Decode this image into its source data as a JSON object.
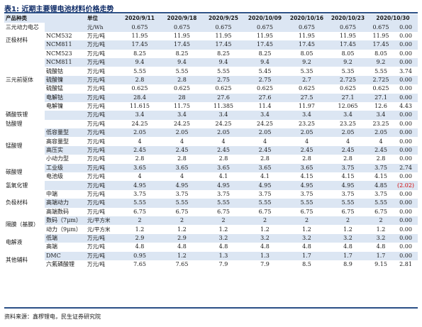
{
  "title": "表1: 近期主要锂电池材料价格走势",
  "source": "资料来源：鑫椤锂电，民生证券研究院",
  "headers": [
    "产品种类",
    "",
    "单位",
    "2020/9/11",
    "2020/9/18",
    "2020/9/25",
    "2020/10/09",
    "2020/10/16",
    "2020/10/23",
    "2020/10/30",
    "环比(%)"
  ],
  "groups": [
    {
      "category": "三元动力电芯",
      "rows": [
        {
          "sub": "",
          "unit": "元/Wh",
          "values": [
            "0.675",
            "0.675",
            "0.675",
            "0.675",
            "0.675",
            "0.675",
            "0.675"
          ],
          "change": "0.00"
        }
      ]
    },
    {
      "category": "正极材料",
      "rows": [
        {
          "sub": "NCM532",
          "unit": "万元/吨",
          "values": [
            "11.95",
            "11.95",
            "11.95",
            "11.95",
            "11.95",
            "11.95",
            "11.95"
          ],
          "change": "0.00"
        },
        {
          "sub": "NCM811",
          "unit": "万元/吨",
          "values": [
            "17.45",
            "17.45",
            "17.45",
            "17.45",
            "17.45",
            "17.45",
            "17.45"
          ],
          "change": "0.00"
        }
      ]
    },
    {
      "category": "三元前驱体",
      "rows": [
        {
          "sub": "NCM523",
          "unit": "万元/吨",
          "values": [
            "8.25",
            "8.25",
            "8.25",
            "8.25",
            "8.05",
            "8.05",
            "8.05"
          ],
          "change": "0.00"
        },
        {
          "sub": "NCM811",
          "unit": "万元/吨",
          "values": [
            "9.4",
            "9.4",
            "9.4",
            "9.4",
            "9.2",
            "9.2",
            "9.2"
          ],
          "change": "0.00"
        },
        {
          "sub": "硫酸钴",
          "unit": "万元/吨",
          "values": [
            "5.55",
            "5.55",
            "5.55",
            "5.45",
            "5.35",
            "5.35",
            "5.55"
          ],
          "change": "3.74"
        },
        {
          "sub": "硫酸镍",
          "unit": "万元/吨",
          "values": [
            "2.8",
            "2.8",
            "2.75",
            "2.75",
            "2.7",
            "2.725",
            "2.725"
          ],
          "change": "0.00"
        },
        {
          "sub": "硫酸锰",
          "unit": "万元/吨",
          "values": [
            "0.625",
            "0.625",
            "0.625",
            "0.625",
            "0.625",
            "0.625",
            "0.625"
          ],
          "change": "0.00"
        },
        {
          "sub": "电解钴",
          "unit": "万元/吨",
          "values": [
            "28.4",
            "28",
            "27.6",
            "27.6",
            "27.5",
            "27.1",
            "27.1"
          ],
          "change": "0.00"
        },
        {
          "sub": "电解镍",
          "unit": "万元/吨",
          "values": [
            "11.615",
            "11.75",
            "11.385",
            "11.4",
            "11.97",
            "12.065",
            "12.6"
          ],
          "change": "4.43"
        }
      ]
    },
    {
      "category": "磷酸铁锂",
      "rows": [
        {
          "sub": "",
          "unit": "万元/吨",
          "values": [
            "3.4",
            "3.4",
            "3.4",
            "3.4",
            "3.4",
            "3.4",
            "3.4"
          ],
          "change": "0.00"
        }
      ]
    },
    {
      "category": "钴酸锂",
      "rows": [
        {
          "sub": "",
          "unit": "万元/吨",
          "values": [
            "24.25",
            "24.25",
            "24.25",
            "24.25",
            "23.25",
            "23.25",
            "23.25"
          ],
          "change": "0.00"
        }
      ]
    },
    {
      "category": "锰酸锂",
      "rows": [
        {
          "sub": "低容量型",
          "unit": "万元/吨",
          "values": [
            "2.05",
            "2.05",
            "2.05",
            "2.05",
            "2.05",
            "2.05",
            "2.05"
          ],
          "change": "0.00"
        },
        {
          "sub": "高容量型",
          "unit": "万元/吨",
          "values": [
            "4",
            "4",
            "4",
            "4",
            "4",
            "4",
            "4"
          ],
          "change": "0.00"
        },
        {
          "sub": "高压实",
          "unit": "万元/吨",
          "values": [
            "2.45",
            "2.45",
            "2.45",
            "2.45",
            "2.45",
            "2.45",
            "2.45"
          ],
          "change": "0.00"
        },
        {
          "sub": "小动力型",
          "unit": "万元/吨",
          "values": [
            "2.8",
            "2.8",
            "2.8",
            "2.8",
            "2.8",
            "2.8",
            "2.8"
          ],
          "change": "0.00"
        }
      ]
    },
    {
      "category": "碳酸锂",
      "rows": [
        {
          "sub": "工业级",
          "unit": "万元/吨",
          "values": [
            "3.65",
            "3.65",
            "3.65",
            "3.65",
            "3.65",
            "3.75",
            "3.75"
          ],
          "change": "2.74"
        },
        {
          "sub": "电池级",
          "unit": "万元/吨",
          "values": [
            "4",
            "4",
            "4.1",
            "4.1",
            "4.15",
            "4.15",
            "4.15"
          ],
          "change": "0.00"
        }
      ]
    },
    {
      "category": "氢氧化锂",
      "rows": [
        {
          "sub": "",
          "unit": "万元/吨",
          "values": [
            "4.95",
            "4.95",
            "4.95",
            "4.95",
            "4.95",
            "4.95",
            "4.85"
          ],
          "change": "(2.02)",
          "change_negative": true
        }
      ]
    },
    {
      "category": "负极材料",
      "rows": [
        {
          "sub": "中端",
          "unit": "万元/吨",
          "values": [
            "3.75",
            "3.75",
            "3.75",
            "3.75",
            "3.75",
            "3.75",
            "3.75"
          ],
          "change": "0.00"
        },
        {
          "sub": "高端动力",
          "unit": "万元/吨",
          "values": [
            "5.55",
            "5.55",
            "5.55",
            "5.55",
            "5.55",
            "5.55",
            "5.55"
          ],
          "change": "0.00"
        },
        {
          "sub": "高端数码",
          "unit": "万元/吨",
          "values": [
            "6.75",
            "6.75",
            "6.75",
            "6.75",
            "6.75",
            "6.75",
            "6.75"
          ],
          "change": "0.00"
        }
      ]
    },
    {
      "category": "隔膜（基膜）",
      "rows": [
        {
          "sub": "数码（7μm）",
          "unit": "元/平方米",
          "values": [
            "2",
            "2",
            "2",
            "2",
            "2",
            "2",
            "2"
          ],
          "change": "0.00"
        },
        {
          "sub": "动力（9μm）",
          "unit": "元/平方米",
          "values": [
            "1.2",
            "1.2",
            "1.2",
            "1.2",
            "1.2",
            "1.2",
            "1.2"
          ],
          "change": "0.00"
        }
      ]
    },
    {
      "category": "电解液",
      "rows": [
        {
          "sub": "低端",
          "unit": "万元/吨",
          "values": [
            "2.9",
            "2.9",
            "3.2",
            "3.2",
            "3.2",
            "3.2",
            "3.2"
          ],
          "change": "0.00"
        },
        {
          "sub": "高端",
          "unit": "万元/吨",
          "values": [
            "4.8",
            "4.8",
            "4.8",
            "4.8",
            "4.8",
            "4.8",
            "4.8"
          ],
          "change": "0.00"
        }
      ]
    },
    {
      "category": "其他辅料",
      "rows": [
        {
          "sub": "DMC",
          "unit": "万元/吨",
          "values": [
            "0.95",
            "1.2",
            "1.3",
            "1.3",
            "1.7",
            "1.7",
            "1.7"
          ],
          "change": "0.00"
        },
        {
          "sub": "六氟磷酸锂",
          "unit": "万元/吨",
          "values": [
            "7.65",
            "7.65",
            "7.9",
            "7.9",
            "8.5",
            "8.9",
            "9.15"
          ],
          "change": "2.81"
        }
      ]
    }
  ]
}
